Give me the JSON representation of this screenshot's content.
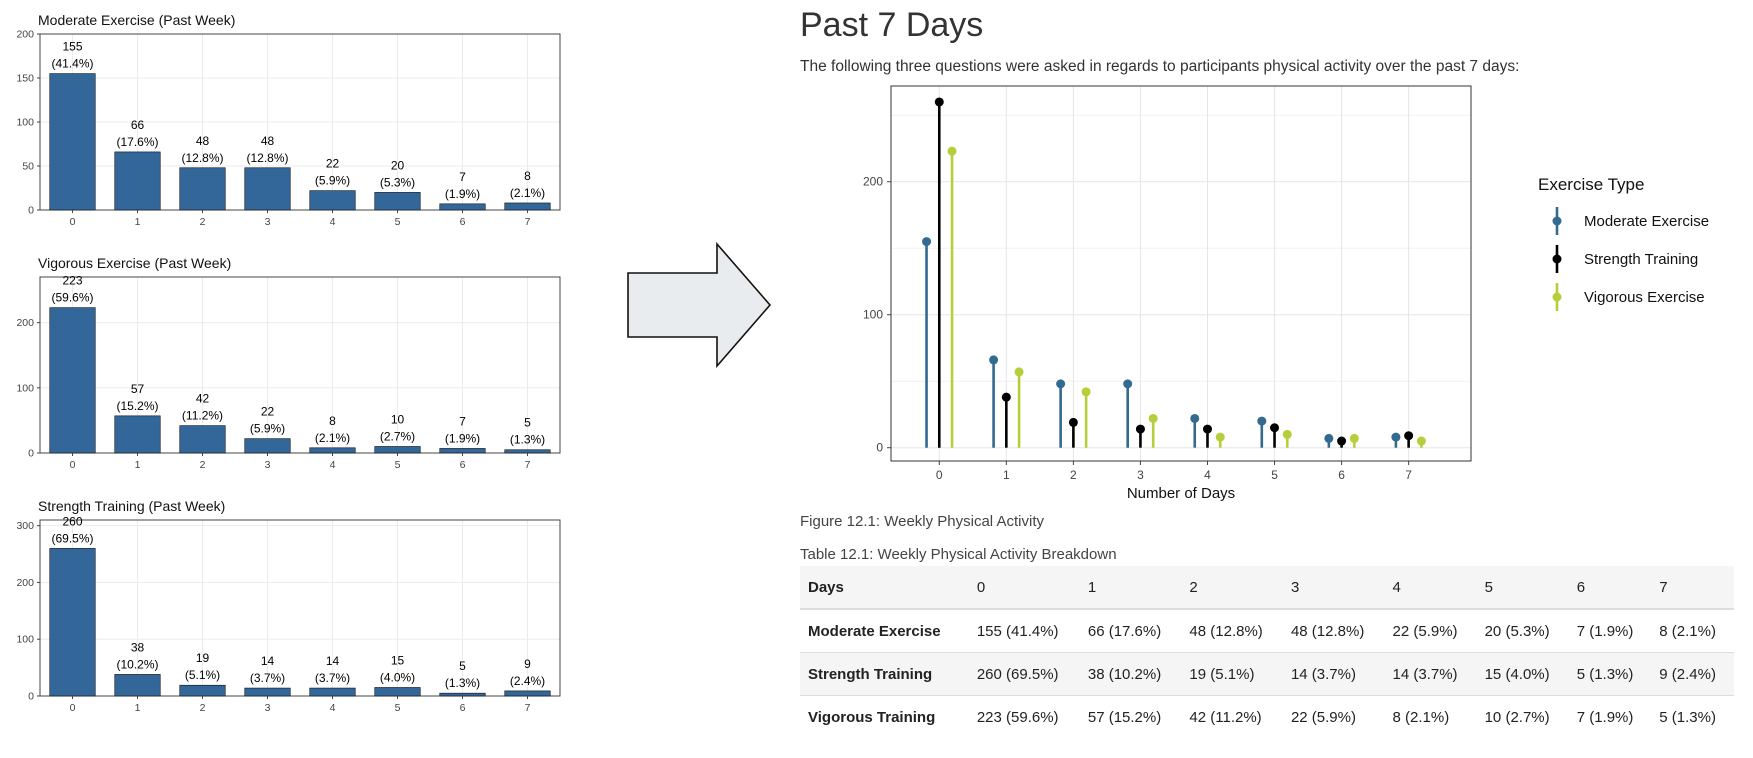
{
  "chart_data": [
    {
      "type": "bar",
      "title": "Moderate Exercise (Past Week)",
      "categories": [
        "0",
        "1",
        "2",
        "3",
        "4",
        "5",
        "6",
        "7"
      ],
      "values": [
        155,
        66,
        48,
        48,
        22,
        20,
        7,
        8
      ],
      "percent_labels": [
        "(41.4%)",
        "(17.6%)",
        "(12.8%)",
        "(12.8%)",
        "(5.9%)",
        "(5.3%)",
        "(1.9%)",
        "(2.1%)"
      ],
      "ylim": [
        0,
        200
      ],
      "yticks": [
        0,
        50,
        100,
        150,
        200
      ],
      "bar_color": "#336699",
      "grid": true
    },
    {
      "type": "bar",
      "title": "Vigorous Exercise (Past Week)",
      "categories": [
        "0",
        "1",
        "2",
        "3",
        "4",
        "5",
        "6",
        "7"
      ],
      "values": [
        223,
        57,
        42,
        22,
        8,
        10,
        7,
        5
      ],
      "percent_labels": [
        "(59.6%)",
        "(15.2%)",
        "(11.2%)",
        "(5.9%)",
        "(2.1%)",
        "(2.7%)",
        "(1.9%)",
        "(1.3%)"
      ],
      "ylim": [
        0,
        270
      ],
      "yticks": [
        0,
        100,
        200
      ],
      "bar_color": "#336699",
      "grid": true
    },
    {
      "type": "bar",
      "title": "Strength Training (Past Week)",
      "categories": [
        "0",
        "1",
        "2",
        "3",
        "4",
        "5",
        "6",
        "7"
      ],
      "values": [
        260,
        38,
        19,
        14,
        14,
        15,
        5,
        9
      ],
      "percent_labels": [
        "(69.5%)",
        "(10.2%)",
        "(5.1%)",
        "(3.7%)",
        "(3.7%)",
        "(4.0%)",
        "(1.3%)",
        "(2.4%)"
      ],
      "ylim": [
        0,
        310
      ],
      "yticks": [
        0,
        100,
        200,
        300
      ],
      "bar_color": "#336699",
      "grid": true
    },
    {
      "type": "scatter",
      "subtype": "lollipop",
      "x": [
        0,
        1,
        2,
        3,
        4,
        5,
        6,
        7
      ],
      "xlabel": "Number of Days",
      "ylabel": "",
      "ylim": [
        -10,
        272
      ],
      "yticks": [
        0,
        100,
        200
      ],
      "grid": true,
      "legend": {
        "title": "Exercise Type",
        "placement": "right"
      },
      "series": [
        {
          "name": "Moderate Exercise",
          "color": "#336a8f",
          "values": [
            155,
            66,
            48,
            48,
            22,
            20,
            7,
            8
          ]
        },
        {
          "name": "Strength Training",
          "color": "#000000",
          "values": [
            260,
            38,
            19,
            14,
            14,
            15,
            5,
            9
          ]
        },
        {
          "name": "Vigorous Exercise",
          "color": "#b5cf3a",
          "values": [
            223,
            57,
            42,
            22,
            8,
            10,
            7,
            5
          ]
        }
      ]
    }
  ],
  "report": {
    "title": "Past 7 Days",
    "intro": "The following three questions were asked in regards to participants physical activity over the past 7 days:",
    "figure_caption": "Figure 12.1: Weekly Physical Activity",
    "table_caption": "Table 12.1: Weekly Physical Activity Breakdown",
    "table": {
      "header": [
        "Days",
        "0",
        "1",
        "2",
        "3",
        "4",
        "5",
        "6",
        "7"
      ],
      "rows": [
        [
          "Moderate Exercise",
          "155 (41.4%)",
          "66 (17.6%)",
          "48 (12.8%)",
          "48 (12.8%)",
          "22 (5.9%)",
          "20 (5.3%)",
          "7 (1.9%)",
          "8 (2.1%)"
        ],
        [
          "Strength Training",
          "260 (69.5%)",
          "38 (10.2%)",
          "19 (5.1%)",
          "14 (3.7%)",
          "14 (3.7%)",
          "15 (4.0%)",
          "5 (1.3%)",
          "9 (2.4%)"
        ],
        [
          "Vigorous Training",
          "223 (59.6%)",
          "57 (15.2%)",
          "42 (11.2%)",
          "22 (5.9%)",
          "8 (2.1%)",
          "10 (2.7%)",
          "7 (1.9%)",
          "5 (1.3%)"
        ]
      ]
    }
  },
  "arrow_icon": "right-arrow-icon",
  "colors": {
    "arrow_fill": "#e8ecef",
    "grid": "#ebebeb",
    "bar": "#336699"
  }
}
